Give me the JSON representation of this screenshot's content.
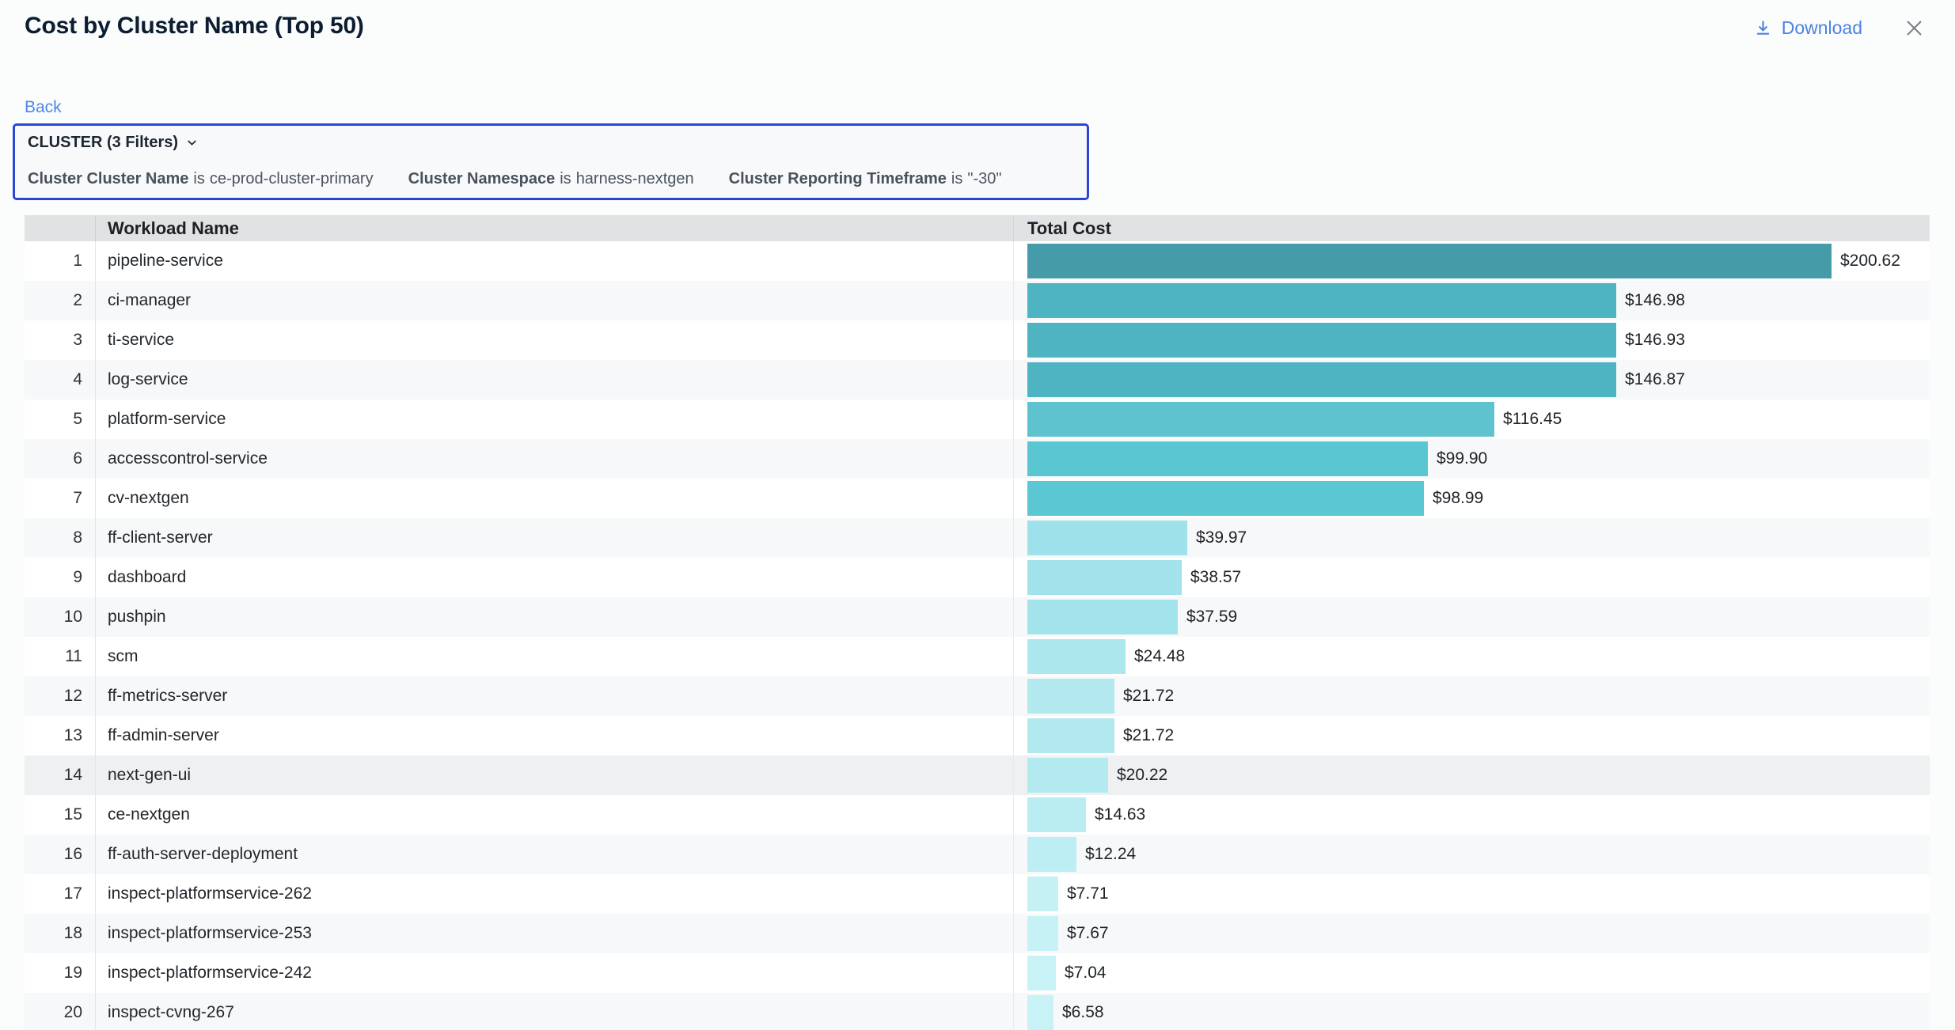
{
  "header": {
    "title": "Cost by Cluster Name (Top 50)",
    "download_label": "Download"
  },
  "nav": {
    "back_label": "Back"
  },
  "icons": {
    "download_icon": "arrow-down-to-line",
    "close_icon": "x",
    "chevron_down_icon": "chevron-down"
  },
  "filter_panel": {
    "summary_label": "CLUSTER (3 Filters)",
    "filters": [
      {
        "field": "Cluster Cluster Name",
        "op": "is",
        "value": "ce-prod-cluster-primary"
      },
      {
        "field": "Cluster Namespace",
        "op": "is",
        "value": "harness-nextgen"
      },
      {
        "field": "Cluster Reporting Timeframe",
        "op": "is",
        "value": "\"-30\""
      }
    ]
  },
  "table": {
    "columns": [
      "",
      "Workload Name",
      "Total Cost"
    ],
    "ranks": [
      1,
      2,
      3,
      4,
      5,
      6,
      7,
      8,
      9,
      10,
      11,
      12,
      13,
      14,
      15,
      16,
      17,
      18,
      19,
      20
    ],
    "highlighted_rank": 14
  },
  "chart_data": {
    "type": "bar",
    "orientation": "horizontal",
    "title": "Cost by Cluster Name (Top 50)",
    "xlabel": "Total Cost",
    "ylabel": "Workload Name",
    "xlim": [
      0,
      226
    ],
    "grid": false,
    "legend": false,
    "categories": [
      "pipeline-service",
      "ci-manager",
      "ti-service",
      "log-service",
      "platform-service",
      "accesscontrol-service",
      "cv-nextgen",
      "ff-client-server",
      "dashboard",
      "pushpin",
      "scm",
      "ff-metrics-server",
      "ff-admin-server",
      "next-gen-ui",
      "ce-nextgen",
      "ff-auth-server-deployment",
      "inspect-platformservice-262",
      "inspect-platformservice-253",
      "inspect-platformservice-242",
      "inspect-cvng-267"
    ],
    "values": [
      200.62,
      146.98,
      146.93,
      146.87,
      116.45,
      99.9,
      98.99,
      39.97,
      38.57,
      37.59,
      24.48,
      21.72,
      21.72,
      20.22,
      14.63,
      12.24,
      7.71,
      7.67,
      7.04,
      6.58
    ],
    "labels": [
      "$200.62",
      "$146.98",
      "$146.93",
      "$146.87",
      "$116.45",
      "$99.90",
      "$98.99",
      "$39.97",
      "$38.57",
      "$37.59",
      "$24.48",
      "$21.72",
      "$21.72",
      "$20.22",
      "$14.63",
      "$12.24",
      "$7.71",
      "$7.67",
      "$7.04",
      "$6.58"
    ],
    "bar_colors": [
      "#459ba7",
      "#4fb4c1",
      "#4fb4c1",
      "#4fb4c1",
      "#5ec3cf",
      "#59c6d2",
      "#5ac7d3",
      "#9fe1ea",
      "#a1e2eb",
      "#a3e3eb",
      "#ace7ee",
      "#b1e9ef",
      "#b1e9ef",
      "#b3eaf0",
      "#baedf2",
      "#bdeef3",
      "#c5f1f5",
      "#c6f1f5",
      "#c8f2f6",
      "#c9f2f6"
    ]
  },
  "colors": {
    "accent_blue": "#4b82e3",
    "filter_border_blue": "#2946d4",
    "table_header_bg": "#e0e2e4",
    "title_color": "#0c1d31"
  }
}
